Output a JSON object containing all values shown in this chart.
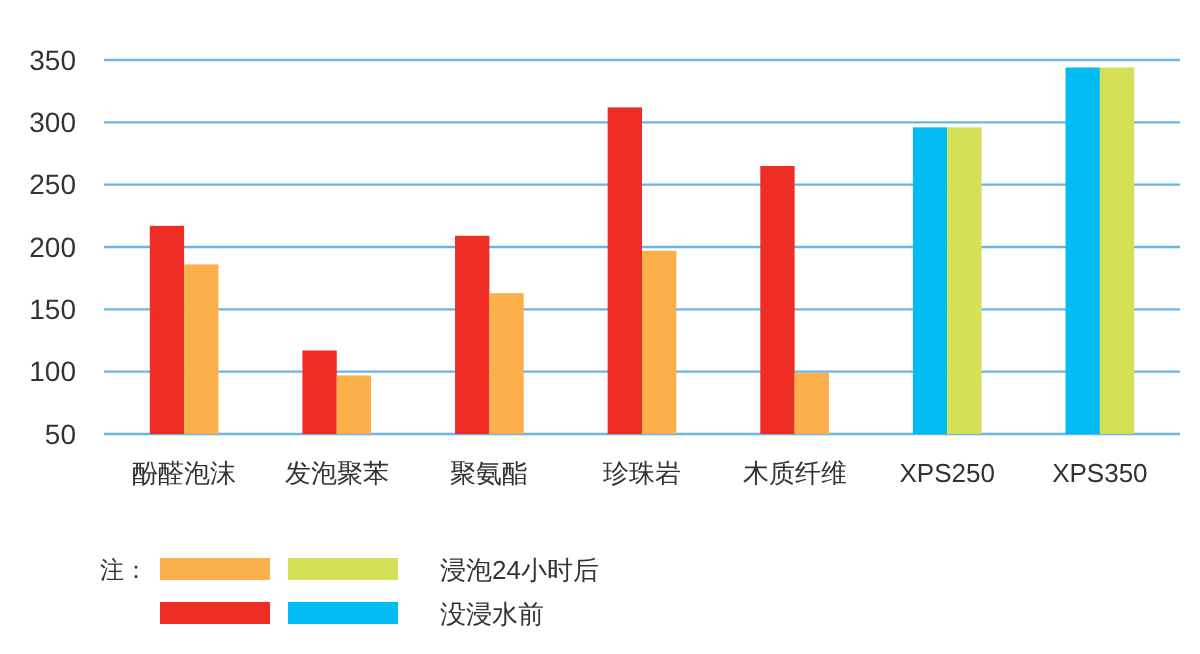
{
  "chart_data": {
    "type": "bar",
    "categories": [
      "酚醛泡沫",
      "发泡聚苯",
      "聚氨酯",
      "珍珠岩",
      "木质纤维",
      "XPS250",
      "XPS350"
    ],
    "series": [
      {
        "name": "没浸水前",
        "colors": [
          "#ee2d24",
          "#ee2d24",
          "#ee2d24",
          "#ee2d24",
          "#ee2d24",
          "#00bcf2",
          "#00bcf2"
        ],
        "values": [
          217,
          117,
          209,
          312,
          265,
          296,
          344
        ]
      },
      {
        "name": "浸泡24小时后",
        "colors": [
          "#fbb04c",
          "#fbb04c",
          "#fbb04c",
          "#fbb04c",
          "#fbb04c",
          "#d4e157",
          "#d4e157"
        ],
        "values": [
          186,
          97,
          163,
          197,
          99,
          296,
          344
        ]
      }
    ],
    "ylim": [
      50,
      350
    ],
    "yticks": [
      50,
      100,
      150,
      200,
      250,
      300,
      350
    ],
    "grid": "y",
    "legend": "bottom left",
    "annotations": [
      "注："
    ]
  }
}
